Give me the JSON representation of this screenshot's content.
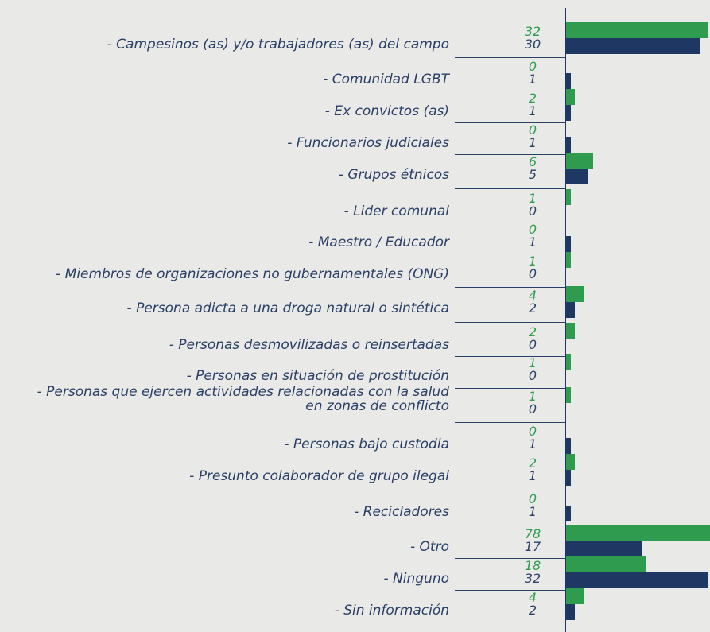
{
  "chart_data": {
    "type": "bar",
    "orientation": "horizontal",
    "categories": [
      "- Campesinos (as) y/o trabajadores (as) del campo",
      "- Comunidad LGBT",
      "- Ex convictos (as)",
      "- Funcionarios judiciales",
      "- Grupos étnicos",
      "- Lider comunal",
      "- Maestro / Educador",
      "- Miembros de organizaciones no gubernamentales (ONG)",
      "- Persona adicta a una droga natural o sintética",
      "- Personas desmovilizadas o reinsertadas",
      "- Personas en situación de prostitución",
      "- Personas que ejercen actividades relacionadas con la salud\nen zonas de conflicto",
      "- Personas bajo custodia",
      "- Presunto colaborador de grupo ilegal",
      "- Recicladores",
      "- Otro",
      "- Ninguno",
      "- Sin información"
    ],
    "series": [
      {
        "color": "#2e9b4e",
        "values": [
          32,
          0,
          2,
          0,
          6,
          1,
          0,
          1,
          4,
          2,
          1,
          1,
          0,
          2,
          0,
          78,
          18,
          4
        ]
      },
      {
        "color": "#1f3763",
        "values": [
          30,
          1,
          1,
          1,
          5,
          0,
          1,
          0,
          2,
          0,
          0,
          0,
          1,
          1,
          1,
          17,
          32,
          2
        ]
      }
    ]
  }
}
